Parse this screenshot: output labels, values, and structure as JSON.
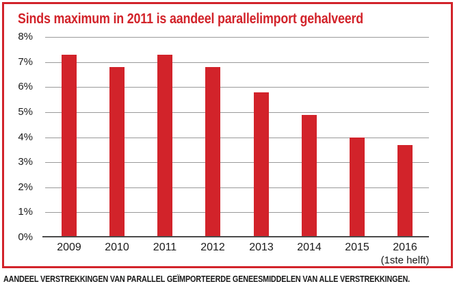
{
  "title": "Sinds maximum in 2011 is aandeel parallelimport gehalveerd",
  "caption": "AANDEEL VERSTREKKINGEN VAN PARALLEL GEÏMPORTEERDE GENEESMIDDELEN VAN ALLE VERSTREKKINGEN.",
  "colors": {
    "accent_red": "#d2232a",
    "gridline": "#999999",
    "axis_line": "#4a4a4a",
    "text": "#1a1a1a",
    "background": "#ffffff"
  },
  "chart_data": {
    "type": "bar",
    "title": "Sinds maximum in 2011 is aandeel parallelimport gehalveerd",
    "categories": [
      "2009",
      "2010",
      "2011",
      "2012",
      "2013",
      "2014",
      "2015",
      "2016"
    ],
    "category_sublabels": [
      "",
      "",
      "",
      "",
      "",
      "",
      "",
      "(1ste helft)"
    ],
    "values": [
      7.3,
      6.8,
      7.3,
      6.8,
      5.8,
      4.9,
      4.0,
      3.7
    ],
    "unit": "%",
    "xlabel": "",
    "ylabel": "",
    "ylim": [
      0,
      8
    ],
    "ytick_step": 1,
    "ytick_labels": [
      "0%",
      "1%",
      "2%",
      "3%",
      "4%",
      "5%",
      "6%",
      "7%",
      "8%"
    ],
    "grid": true,
    "legend": "none",
    "bar_color": "#d2232a"
  }
}
